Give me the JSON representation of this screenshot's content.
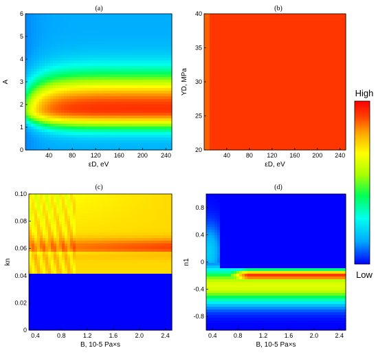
{
  "chart_data": [
    {
      "type": "heatmap",
      "title": "(a)",
      "xlabel": "εD, eV",
      "ylabel": "A",
      "xlim": [
        0,
        250
      ],
      "ylim": [
        0,
        6
      ],
      "xticks": [
        40,
        80,
        120,
        160,
        200,
        240
      ],
      "yticks": [
        0,
        1,
        2,
        3,
        4,
        5,
        6
      ],
      "description_of_field": "peak (high) band near A=1.5-2 for εD above ~30 eV, decreasing to low above A~4 and near εD=0"
    },
    {
      "type": "heatmap",
      "title": "(b)",
      "xlabel": "εD, eV",
      "ylabel": "YD, MPa",
      "xlim": [
        0,
        250
      ],
      "ylim": [
        20,
        40
      ],
      "xticks": [
        40,
        80,
        120,
        160,
        200,
        240
      ],
      "yticks": [
        20,
        25,
        30,
        35,
        40
      ],
      "description_of_field": "nearly uniform high-orange field, lighter strip for εD below ~15 eV"
    },
    {
      "type": "heatmap",
      "title": "(c)",
      "xlabel": "B, 10-5 Pa×s",
      "ylabel": "kn",
      "xlim": [
        0.3,
        2.5
      ],
      "ylim": [
        0,
        0.1
      ],
      "xticks": [
        0.4,
        0.8,
        1.2,
        1.6,
        2.0,
        2.4
      ],
      "yticks": [
        0,
        0.02,
        0.04,
        0.06,
        0.08,
        0.1
      ],
      "description_of_field": "low below kn=0.04; high band near kn~0.058-0.065 increasing with B"
    },
    {
      "type": "heatmap",
      "title": "(d)",
      "xlabel": "B, 10-5 Pa×s",
      "ylabel": "n1",
      "xlim": [
        0.3,
        2.5
      ],
      "ylim": [
        -1,
        1
      ],
      "xticks": [
        0.4,
        0.8,
        1.2,
        1.6,
        2.0,
        2.4
      ],
      "yticks": [
        -0.8,
        -0.4,
        0,
        0.4,
        0.8
      ],
      "description_of_field": "low above n1=-0.1; high band near n1~-0.2 for B above 0.5"
    }
  ],
  "colorbar": {
    "high_label": "High",
    "low_label": "Low",
    "colors": [
      "#0000ff",
      "#00aaff",
      "#00ffee",
      "#00ff55",
      "#aaff00",
      "#ffff00",
      "#ffaa00",
      "#ff4400",
      "#ff0000"
    ]
  }
}
